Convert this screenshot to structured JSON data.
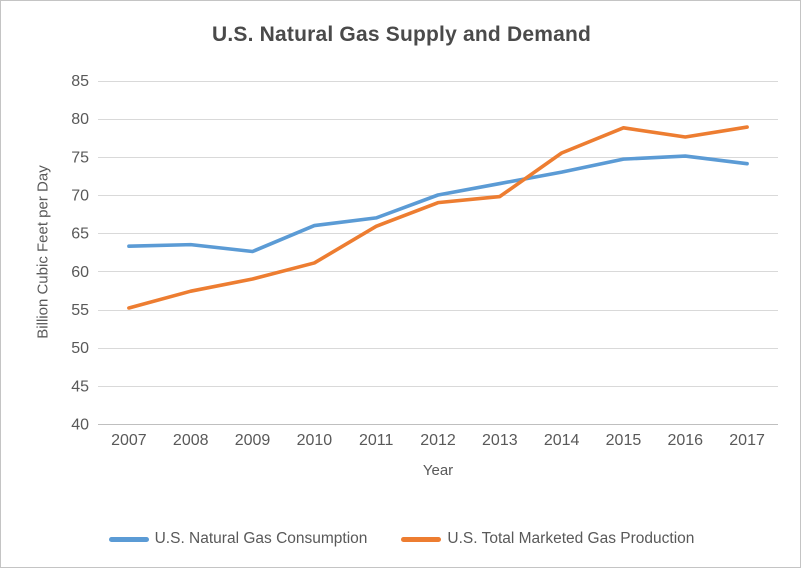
{
  "chart_data": {
    "type": "line",
    "title": "U.S. Natural Gas Supply and Demand",
    "xlabel": "Year",
    "ylabel": "Billion Cubic Feet per Day",
    "x": [
      "2007",
      "2008",
      "2009",
      "2010",
      "2011",
      "2012",
      "2013",
      "2014",
      "2015",
      "2016",
      "2017"
    ],
    "ylim": [
      40,
      85
    ],
    "yticks": [
      40,
      45,
      50,
      55,
      60,
      65,
      70,
      75,
      80,
      85
    ],
    "grid": true,
    "legend_position": "bottom",
    "series": [
      {
        "name": "U.S. Natural Gas Consumption",
        "color": "#5B9BD5",
        "values": [
          63.3,
          63.5,
          62.6,
          66.0,
          67.0,
          70.0,
          71.5,
          73.0,
          74.7,
          75.1,
          74.1
        ]
      },
      {
        "name": "U.S. Total Marketed Gas Production",
        "color": "#ED7D31",
        "values": [
          55.2,
          57.4,
          59.0,
          61.1,
          65.9,
          69.0,
          69.8,
          75.5,
          78.8,
          77.6,
          78.9
        ]
      }
    ],
    "colors": {
      "gridline": "#D9D9D9",
      "axis_line": "#BFBFBF",
      "tick_text": "#595959",
      "title_text": "#4a4a4a",
      "background": "#FFFFFF"
    }
  }
}
